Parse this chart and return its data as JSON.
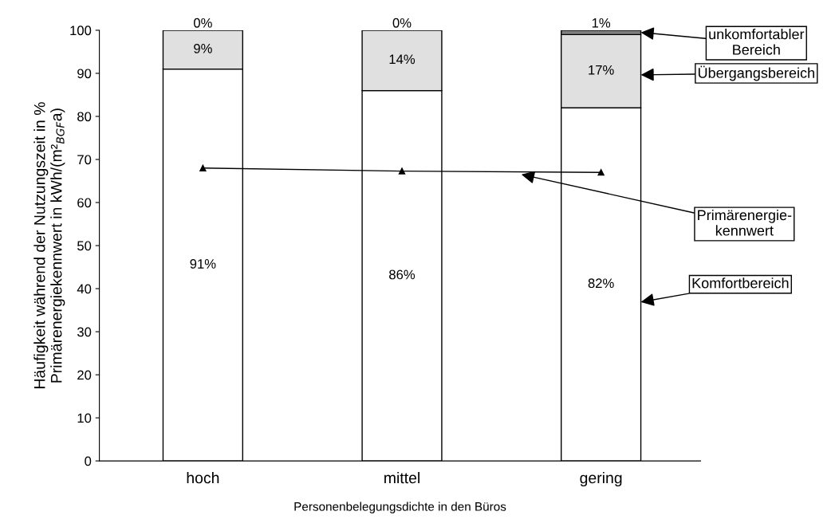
{
  "chart_data": {
    "type": "bar",
    "stacked": true,
    "xlabel": "Personenbelegungsdichte in den Büros",
    "ylabel": "Häufigkeit während der Nutzungszeit in %\nPrimärenergiekennwert in kWh/(m²$_{BGF}$a)",
    "categories": [
      "hoch",
      "mittel",
      "gering"
    ],
    "ylim": [
      0,
      100
    ],
    "yticks": [
      0,
      10,
      20,
      30,
      40,
      50,
      60,
      70,
      80,
      90,
      100
    ],
    "series": [
      {
        "name": "Komfortbereich",
        "color": "#ffffff",
        "values": [
          91,
          86,
          82
        ],
        "value_labels": [
          "91%",
          "86%",
          "82%"
        ]
      },
      {
        "name": "Übergangsbereich",
        "color": "#e0e0e0",
        "values": [
          9,
          14,
          17
        ],
        "value_labels": [
          "9%",
          "14%",
          "17%"
        ]
      },
      {
        "name": "unkomfortabler\nBereich",
        "color": "#808080",
        "values": [
          0,
          0,
          1
        ],
        "value_labels": [
          "0%",
          "0%",
          "1%"
        ]
      },
      {
        "name": "Primärenergie-\nkennwert",
        "type": "line",
        "color": "#000000",
        "values": [
          68,
          67.3,
          67
        ],
        "marker": "triangle"
      }
    ],
    "grid": false,
    "legend": "right"
  }
}
